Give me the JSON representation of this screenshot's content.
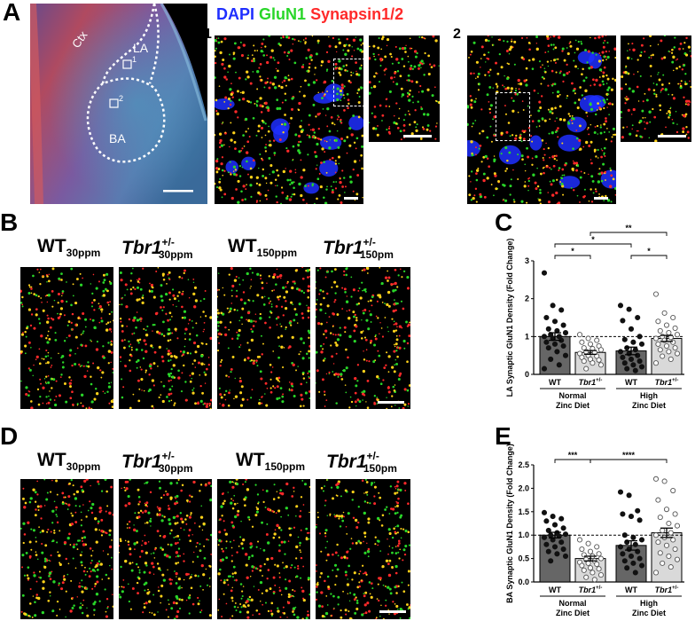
{
  "panels": {
    "A": "A",
    "B": "B",
    "C": "C",
    "D": "D",
    "E": "E"
  },
  "legend": {
    "dapi": "DAPI",
    "gluN1": "GluN1",
    "synapsin": "Synapsin1/2"
  },
  "overview": {
    "region_ctx": "Ctx",
    "region_la": "LA",
    "region_ba": "BA",
    "box1_label": "1",
    "box2_label": "2"
  },
  "insets": {
    "inset1_num": "1",
    "inset2_num": "2"
  },
  "genotypes": {
    "wt": "WT",
    "tbr": "Tbr1",
    "het": "+/-",
    "dose_30": "30ppm",
    "dose_150": "150ppm",
    "dose_150_trunc": "150pm"
  },
  "colors": {
    "dapi": "#1f2fff",
    "gluN1": "#29d629",
    "synapsin": "#ff2a2a",
    "bar_wt": "#666666",
    "bar_tbr": "#d9d9d9"
  },
  "chart_data": [
    {
      "type": "bar",
      "panel": "C",
      "ylabel": "LA Synaptic GluN1 Density (Fold Change)",
      "ylim": [
        0,
        3
      ],
      "yticks": [
        "0",
        "1",
        "2",
        "3"
      ],
      "categories": [
        "WT",
        "Tbr1+/-",
        "WT",
        "Tbr1+/-"
      ],
      "category_text": {
        "wt": "WT",
        "tbr": "Tbr1",
        "het": "+/-"
      },
      "groups": [
        {
          "line1": "Normal",
          "line2": "Zinc Diet"
        },
        {
          "line1": "High",
          "line2": "Zinc Diet"
        }
      ],
      "values": [
        1.0,
        0.58,
        0.62,
        0.95
      ],
      "errors": [
        0.1,
        0.05,
        0.1,
        0.08
      ],
      "reference_line": 1,
      "points": [
        [
          2.68,
          1.82,
          1.7,
          1.5,
          1.4,
          1.3,
          1.2,
          1.15,
          1.1,
          1.05,
          1.0,
          1.0,
          0.95,
          0.9,
          0.85,
          0.8,
          0.75,
          0.7,
          0.6,
          0.5,
          0.4,
          0.25,
          0.15
        ],
        [
          1.05,
          0.95,
          0.9,
          0.85,
          0.8,
          0.75,
          0.7,
          0.68,
          0.65,
          0.6,
          0.58,
          0.55,
          0.5,
          0.48,
          0.45,
          0.4,
          0.38,
          0.35,
          0.3,
          0.25,
          0.15
        ],
        [
          1.82,
          1.72,
          1.5,
          1.42,
          1.2,
          1.0,
          0.92,
          0.85,
          0.8,
          0.7,
          0.65,
          0.6,
          0.55,
          0.5,
          0.45,
          0.4,
          0.35,
          0.3,
          0.25,
          0.2,
          0.15,
          0.1
        ],
        [
          2.12,
          1.62,
          1.5,
          1.4,
          1.3,
          1.22,
          1.15,
          1.1,
          1.05,
          1.0,
          0.98,
          0.95,
          0.9,
          0.85,
          0.8,
          0.75,
          0.7,
          0.65,
          0.6,
          0.55,
          0.48,
          0.4,
          0.3
        ]
      ],
      "significance": [
        {
          "from": 0,
          "to": 1,
          "level": 1,
          "label": "*"
        },
        {
          "from": 0,
          "to": 2,
          "level": 2,
          "label": "*"
        },
        {
          "from": 2,
          "to": 3,
          "level": 1,
          "label": "*"
        },
        {
          "from": 1,
          "to": 3,
          "level": 3,
          "label": "**"
        }
      ]
    },
    {
      "type": "bar",
      "panel": "E",
      "ylabel": "BA Synaptic GluN1 Density (Fold Change)",
      "ylim": [
        0,
        2.5
      ],
      "yticks": [
        "0.0",
        "0.5",
        "1.0",
        "1.5",
        "2.0",
        "2.5"
      ],
      "categories": [
        "WT",
        "Tbr1+/-",
        "WT",
        "Tbr1+/-"
      ],
      "category_text": {
        "wt": "WT",
        "tbr": "Tbr1",
        "het": "+/-"
      },
      "groups": [
        {
          "line1": "Normal",
          "line2": "Zinc Diet"
        },
        {
          "line1": "High",
          "line2": "Zinc Diet"
        }
      ],
      "values": [
        1.0,
        0.5,
        0.78,
        1.05
      ],
      "errors": [
        0.06,
        0.05,
        0.1,
        0.1
      ],
      "reference_line": 1,
      "points": [
        [
          1.48,
          1.4,
          1.35,
          1.3,
          1.22,
          1.15,
          1.1,
          1.05,
          1.02,
          1.0,
          0.98,
          0.95,
          0.9,
          0.85,
          0.8,
          0.75,
          0.7,
          0.65,
          0.6,
          0.55,
          0.45
        ],
        [
          0.9,
          0.82,
          0.75,
          0.7,
          0.65,
          0.6,
          0.58,
          0.55,
          0.5,
          0.48,
          0.45,
          0.42,
          0.4,
          0.38,
          0.35,
          0.3,
          0.28,
          0.25,
          0.2,
          0.15,
          0.1,
          0.05
        ],
        [
          1.92,
          1.85,
          1.52,
          1.45,
          1.4,
          1.32,
          1.0,
          0.95,
          0.9,
          0.85,
          0.8,
          0.75,
          0.7,
          0.65,
          0.6,
          0.55,
          0.5,
          0.45,
          0.4,
          0.35,
          0.3,
          0.2
        ],
        [
          2.2,
          2.15,
          1.95,
          1.75,
          1.55,
          1.45,
          1.38,
          1.25,
          1.2,
          1.1,
          1.05,
          1.0,
          0.95,
          0.9,
          0.85,
          0.78,
          0.7,
          0.62,
          0.55,
          0.48,
          0.4,
          0.32,
          0.2
        ]
      ],
      "significance": [
        {
          "from": 0,
          "to": 1,
          "level": 1,
          "label": "***"
        },
        {
          "from": 1,
          "to": 3,
          "level": 1,
          "label": "****"
        }
      ]
    }
  ]
}
